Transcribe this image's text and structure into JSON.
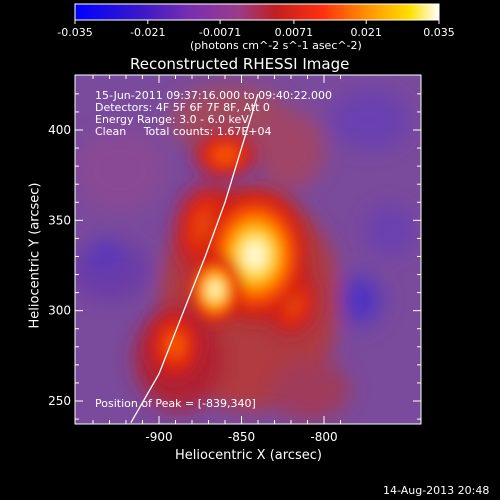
{
  "colorbar": {
    "ticks": [
      "-0.035",
      "-0.021",
      "-0.0071",
      "0.0071",
      "0.021",
      "0.035"
    ],
    "tick_values": [
      -0.035,
      -0.021,
      -0.0071,
      0.0071,
      0.021,
      0.035
    ],
    "min": -0.035,
    "max": 0.035,
    "unit_label": "(photons cm^-2 s^-1 asec^-2)",
    "colors": [
      "#0000ff",
      "#400080",
      "#6a3a9a",
      "#8d4aa6",
      "#b24b2f",
      "#e0301a",
      "#ff8c00",
      "#ffd000",
      "#ffffff"
    ]
  },
  "title": "Reconstructed RHESSI Image",
  "annotations": {
    "line1": "15-Jun-2011 09:37:16.000 to 09:40:22.000",
    "line2": "Detectors: 4F 5F 6F 7F 8F, Att 0",
    "line3": "Energy Range: 3.0 - 6.0 keV",
    "line4": "Clean     Total counts: 1.67E+04",
    "peak": "Position of Peak = [-839,340]"
  },
  "footer_date": "14-Aug-2013 20:48",
  "chart_data": {
    "type": "heatmap",
    "title": "Reconstructed RHESSI Image",
    "xlabel": "Heliocentric X (arcsec)",
    "ylabel": "Heliocentric Y (arcsec)",
    "x_ticks": [
      -900,
      -850,
      -800
    ],
    "y_ticks": [
      250,
      300,
      350,
      400
    ],
    "xlim": [
      -940,
      -845
    ],
    "ylim": [
      238,
      420
    ],
    "x_tick_labels": [
      "-900",
      "-850",
      "-800"
    ],
    "y_tick_labels": [
      "250",
      "300",
      "350",
      "400"
    ],
    "peak": [
      -839,
      340
    ],
    "limb_points": [
      [
        -917,
        238
      ],
      [
        -900,
        265
      ],
      [
        -885,
        300
      ],
      [
        -872,
        330
      ],
      [
        -860,
        360
      ],
      [
        -850,
        390
      ],
      [
        -840,
        420
      ]
    ]
  },
  "colors": {
    "background": "#000000",
    "axis": "#ffffff",
    "limb_line": "#ffffff"
  }
}
